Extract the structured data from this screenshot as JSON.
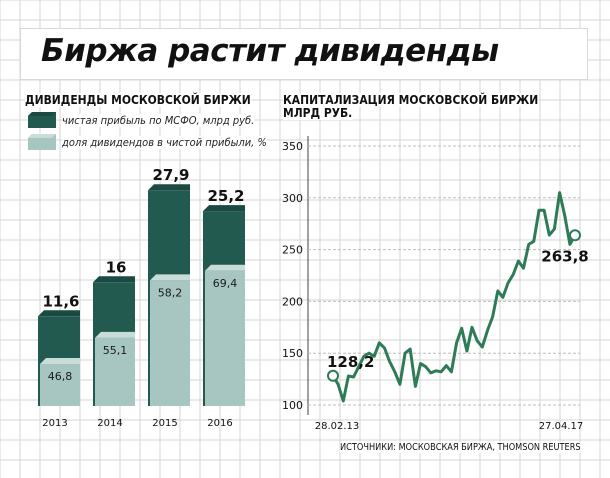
{
  "title": "Биржа растит дивиденды",
  "source": "ИСТОЧНИКИ: МОСКОВСКАЯ БИРЖА, THOMSON REUTERS",
  "colors": {
    "dark": "#225a50",
    "dark_top": "#1b4a42",
    "light": "#a7c6c1",
    "light_top": "#c8dcd8",
    "line": "#2e7b58",
    "grid": "#d6d6d6"
  },
  "chart_data": [
    {
      "type": "bar",
      "title": "ДИВИДЕНДЫ МОСКОВСКОЙ БИРЖИ",
      "categories": [
        "2013",
        "2014",
        "2015",
        "2016"
      ],
      "series": [
        {
          "name": "чистая прибыль по МСФО, млрд руб.",
          "values": [
            11.6,
            16,
            27.9,
            25.2
          ],
          "labels": [
            "11,6",
            "16",
            "27,9",
            "25,2"
          ]
        },
        {
          "name": "доля дивидендов в чистой прибыли, %",
          "values": [
            46.8,
            55.1,
            58.2,
            69.4
          ],
          "labels": [
            "46,8",
            "55,1",
            "58,2",
            "69,4"
          ]
        }
      ],
      "legend": "top-left"
    },
    {
      "type": "line",
      "title": "КАПИТАЛИЗАЦИЯ МОСКОВСКОЙ БИРЖИ",
      "subtitle": "МЛРД РУБ.",
      "ylim": [
        100,
        350
      ],
      "yticks": [
        100,
        150,
        200,
        250,
        300,
        350
      ],
      "x_labels": [
        "28.02.13",
        "27.04.17"
      ],
      "start": {
        "value": 128.2,
        "label": "128,2"
      },
      "end": {
        "value": 263.8,
        "label": "263,8"
      },
      "values": [
        128.2,
        120,
        104,
        128,
        127,
        137,
        147,
        150,
        147,
        160,
        155,
        142,
        132,
        120,
        150,
        154,
        118,
        140,
        137,
        131,
        133,
        132,
        138,
        132,
        160,
        174,
        152,
        175,
        162,
        156,
        172,
        185,
        210,
        204,
        218,
        226,
        239,
        232,
        255,
        258,
        288,
        288,
        264,
        270,
        305,
        283,
        255,
        263.8
      ]
    }
  ]
}
